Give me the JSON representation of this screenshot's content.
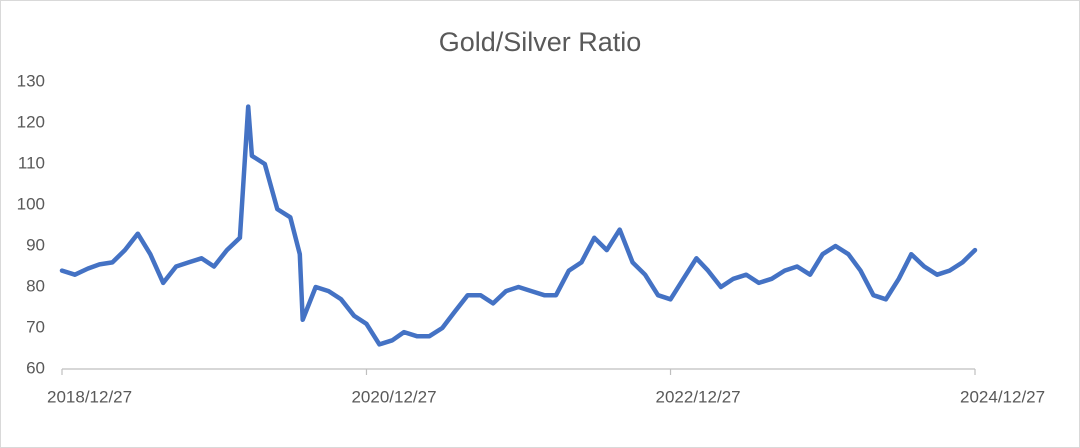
{
  "chart_data": {
    "type": "line",
    "title": "Gold/Silver Ratio",
    "x": [
      "2018/12/27",
      "2019/01/27",
      "2019/02/27",
      "2019/03/27",
      "2019/04/27",
      "2019/05/27",
      "2019/06/27",
      "2019/07/27",
      "2019/08/27",
      "2019/09/27",
      "2019/10/27",
      "2019/11/27",
      "2019/12/27",
      "2020/01/27",
      "2020/02/27",
      "2020/03/18",
      "2020/03/27",
      "2020/04/27",
      "2020/05/27",
      "2020/06/27",
      "2020/07/20",
      "2020/07/27",
      "2020/08/27",
      "2020/09/27",
      "2020/10/27",
      "2020/11/27",
      "2020/12/27",
      "2021/01/27",
      "2021/02/27",
      "2021/03/27",
      "2021/04/27",
      "2021/05/27",
      "2021/06/27",
      "2021/07/27",
      "2021/08/27",
      "2021/09/27",
      "2021/10/27",
      "2021/11/27",
      "2021/12/27",
      "2022/01/27",
      "2022/02/27",
      "2022/03/27",
      "2022/04/27",
      "2022/05/27",
      "2022/06/27",
      "2022/07/27",
      "2022/08/27",
      "2022/09/27",
      "2022/10/27",
      "2022/11/27",
      "2022/12/27",
      "2023/01/27",
      "2023/02/27",
      "2023/03/27",
      "2023/04/27",
      "2023/05/27",
      "2023/06/27",
      "2023/07/27",
      "2023/08/27",
      "2023/09/27",
      "2023/10/27",
      "2023/11/27",
      "2023/12/27",
      "2024/01/27",
      "2024/02/27",
      "2024/03/27",
      "2024/04/27",
      "2024/05/27",
      "2024/06/27",
      "2024/07/27",
      "2024/08/27",
      "2024/09/27",
      "2024/10/27",
      "2024/11/27",
      "2024/12/27"
    ],
    "series": [
      {
        "color": "#4472c4",
        "values": [
          84,
          83,
          84.5,
          85.5,
          86,
          89,
          93,
          88,
          81,
          85,
          86,
          87,
          85,
          89,
          92,
          124,
          112,
          110,
          99,
          97,
          88,
          72,
          80,
          79,
          77,
          73,
          71,
          66,
          67,
          69,
          68,
          68,
          70,
          74,
          78,
          78,
          76,
          79,
          80,
          79,
          78,
          78,
          84,
          86,
          92,
          89,
          94,
          86,
          83,
          78,
          77,
          82,
          87,
          84,
          80,
          82,
          83,
          81,
          82,
          84,
          85,
          83,
          88,
          90,
          88,
          84,
          78,
          77,
          82,
          88,
          85,
          83,
          84,
          86,
          89
        ]
      }
    ],
    "xlim": [
      "2018/12/27",
      "2024/12/27"
    ],
    "xticks": [
      "2018/12/27",
      "2020/12/27",
      "2022/12/27",
      "2024/12/27"
    ],
    "ylim": [
      60,
      130
    ],
    "yticks": [
      60,
      70,
      80,
      90,
      100,
      110,
      120,
      130
    ],
    "grid": false
  }
}
